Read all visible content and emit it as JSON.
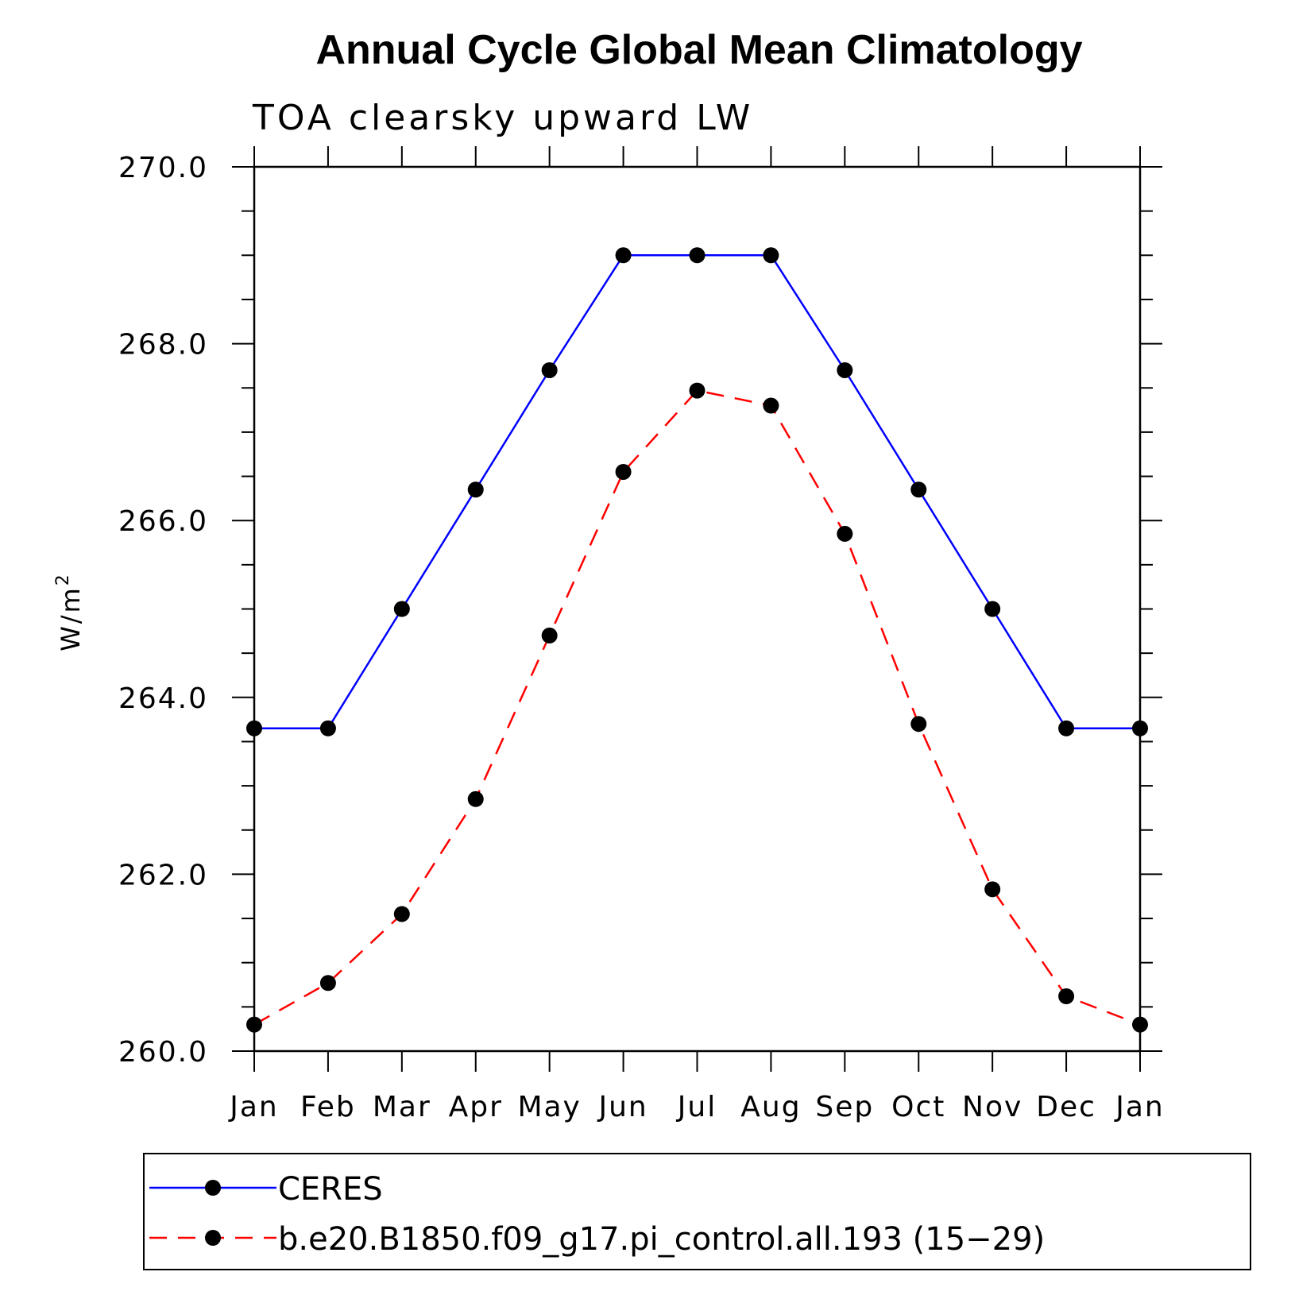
{
  "chart_data": {
    "type": "line",
    "title": "Annual Cycle Global Mean Climatology",
    "subtitle": "TOA clearsky upward LW",
    "ylabel": "W/m",
    "ylabel_superscript": "2",
    "categories": [
      "Jan",
      "Feb",
      "Mar",
      "Apr",
      "May",
      "Jun",
      "Jul",
      "Aug",
      "Sep",
      "Oct",
      "Nov",
      "Dec",
      "Jan"
    ],
    "ylim": [
      260.0,
      270.0
    ],
    "yticks": [
      "260.0",
      "262.0",
      "264.0",
      "266.0",
      "268.0",
      "270.0"
    ],
    "grid": false,
    "legend_position": "bottom",
    "series": [
      {
        "name": "CERES",
        "color": "#0000ff",
        "dash": "solid",
        "marker": "circle",
        "values": [
          263.65,
          263.65,
          265.0,
          266.35,
          267.7,
          269.0,
          269.0,
          269.0,
          267.7,
          266.35,
          265.0,
          263.65,
          263.65
        ]
      },
      {
        "name": "b.e20.B1850.f09_g17.pi_control.all.193 (15−29)",
        "color": "#ff0000",
        "dash": "dashed",
        "marker": "circle",
        "values": [
          260.3,
          260.77,
          261.55,
          262.85,
          264.7,
          266.55,
          267.47,
          267.3,
          265.85,
          263.7,
          261.83,
          260.62,
          260.3
        ]
      }
    ]
  }
}
